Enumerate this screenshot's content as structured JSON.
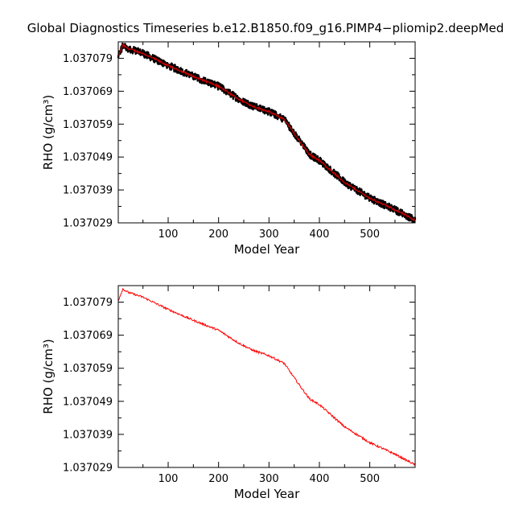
{
  "title": "Global Diagnostics Timeseries b.e12.B1850.f09_g16.PIMP4−pliomip2.deepMed",
  "colors": {
    "annual": "#000000",
    "smoothed": "#cc0000",
    "line": "#ff0000",
    "axis": "#000000"
  },
  "chart_data": [
    {
      "type": "line",
      "xlabel": "Model Year",
      "ylabel": "RHO (g/cm³)",
      "xlim": [
        1,
        590
      ],
      "ylim": [
        1.037029,
        1.037084
      ],
      "x_ticks": [
        "100",
        "200",
        "300",
        "400",
        "500"
      ],
      "y_ticks": [
        "1.037029",
        "1.037039",
        "1.037049",
        "1.037059",
        "1.037069",
        "1.037079"
      ],
      "series": [
        {
          "style": "noisy-black-with-red-smooth",
          "x": [
            1,
            10,
            20,
            50,
            100,
            150,
            200,
            240,
            270,
            300,
            330,
            360,
            380,
            400,
            450,
            500,
            550,
            590
          ],
          "y": [
            1.0370795,
            1.037083,
            1.037082,
            1.0370805,
            1.0370768,
            1.0370735,
            1.0370705,
            1.0370666,
            1.0370643,
            1.0370628,
            1.0370605,
            1.037054,
            1.0370498,
            1.037048,
            1.0370413,
            1.0370365,
            1.037033,
            1.0370298
          ]
        }
      ]
    },
    {
      "type": "line",
      "xlabel": "Model Year",
      "ylabel": "RHO (g/cm³)",
      "xlim": [
        1,
        590
      ],
      "ylim": [
        1.037029,
        1.037084
      ],
      "x_ticks": [
        "100",
        "200",
        "300",
        "400",
        "500"
      ],
      "y_ticks": [
        "1.037029",
        "1.037039",
        "1.037049",
        "1.037059",
        "1.037069",
        "1.037079"
      ],
      "series": [
        {
          "style": "red-line",
          "x": [
            1,
            10,
            20,
            50,
            100,
            150,
            200,
            240,
            270,
            300,
            330,
            360,
            380,
            400,
            450,
            500,
            550,
            590
          ],
          "y": [
            1.0370795,
            1.037083,
            1.037082,
            1.0370805,
            1.0370768,
            1.0370735,
            1.0370705,
            1.0370666,
            1.0370643,
            1.0370628,
            1.0370605,
            1.037054,
            1.0370498,
            1.037048,
            1.0370413,
            1.0370365,
            1.037033,
            1.0370298
          ]
        }
      ]
    }
  ]
}
